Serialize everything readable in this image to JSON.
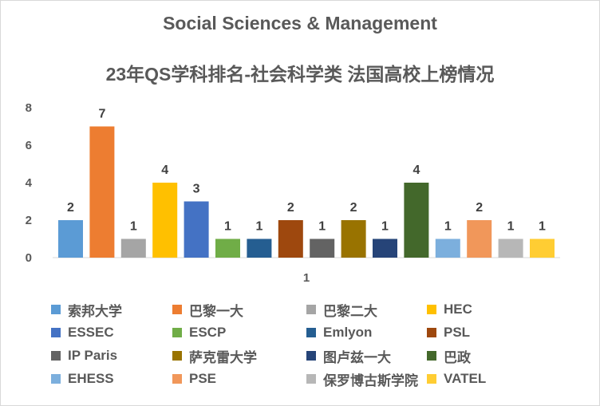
{
  "chart_data": {
    "type": "bar",
    "title": "Social Sciences & Management",
    "subtitle": "23年QS学科排名-社会科学类 法国高校上榜情况",
    "categories": [
      "1"
    ],
    "ylim": [
      0,
      8
    ],
    "yticks": [
      "0",
      "2",
      "4",
      "6",
      "8"
    ],
    "grid": false,
    "legend_position": "bottom",
    "series": [
      {
        "name": "索邦大学",
        "values": [
          2
        ],
        "color": "#5b9bd5"
      },
      {
        "name": "巴黎一大",
        "values": [
          7
        ],
        "color": "#ed7d31"
      },
      {
        "name": "巴黎二大",
        "values": [
          1
        ],
        "color": "#a5a5a5"
      },
      {
        "name": "HEC",
        "values": [
          4
        ],
        "color": "#ffc000"
      },
      {
        "name": "ESSEC",
        "values": [
          3
        ],
        "color": "#4472c4"
      },
      {
        "name": "ESCP",
        "values": [
          1
        ],
        "color": "#70ad47"
      },
      {
        "name": "Emlyon",
        "values": [
          1
        ],
        "color": "#255e91"
      },
      {
        "name": "PSL",
        "values": [
          2
        ],
        "color": "#9e480e"
      },
      {
        "name": "IP Paris",
        "values": [
          1
        ],
        "color": "#636363"
      },
      {
        "name": "萨克雷大学",
        "values": [
          2
        ],
        "color": "#997300"
      },
      {
        "name": "图卢兹一大",
        "values": [
          1
        ],
        "color": "#264478"
      },
      {
        "name": "巴政",
        "values": [
          4
        ],
        "color": "#43682b"
      },
      {
        "name": "EHESS",
        "values": [
          1
        ],
        "color": "#7cafdd"
      },
      {
        "name": "PSE",
        "values": [
          2
        ],
        "color": "#f1975a"
      },
      {
        "name": "保罗博古斯学院",
        "values": [
          1
        ],
        "color": "#b7b7b7"
      },
      {
        "name": "VATEL",
        "values": [
          1
        ],
        "color": "#ffcd33"
      }
    ]
  }
}
